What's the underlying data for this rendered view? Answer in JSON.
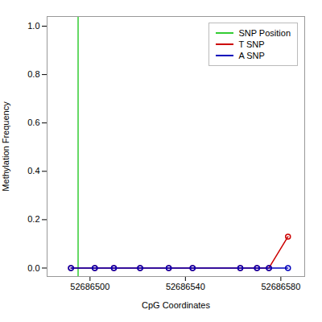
{
  "chart_data": {
    "type": "line",
    "xlabel": "CpG Coordinates",
    "ylabel": "Methylation Frequency",
    "x": [
      52686492,
      52686502,
      52686510,
      52686521,
      52686533,
      52686543,
      52686563,
      52686570,
      52686575,
      52686583
    ],
    "series": [
      {
        "name": "T SNP",
        "color": "#cc0000",
        "marker": "circle",
        "values": [
          0.0,
          0.0,
          0.0,
          0.0,
          0.0,
          0.0,
          0.0,
          0.0,
          0.0,
          0.13
        ]
      },
      {
        "name": "A SNP",
        "color": "#0000bb",
        "marker": "circle",
        "values": [
          0.0,
          0.0,
          0.0,
          0.0,
          0.0,
          0.0,
          0.0,
          0.0,
          0.0,
          0.0
        ]
      }
    ],
    "vlines": [
      {
        "name": "SNP Position",
        "x": 52686495,
        "color": "#33cc33"
      }
    ],
    "xlim": [
      52686482,
      52686590
    ],
    "xticks": [
      52686500,
      52686540,
      52686580
    ],
    "ylim": [
      -0.035,
      1.04
    ],
    "yticks": [
      {
        "value": 0.0,
        "label": "0.0"
      },
      0.2,
      0.4,
      0.6,
      0.8,
      {
        "value": 1.0,
        "label": "1.0"
      }
    ],
    "grid": false,
    "legend": "upper right"
  }
}
